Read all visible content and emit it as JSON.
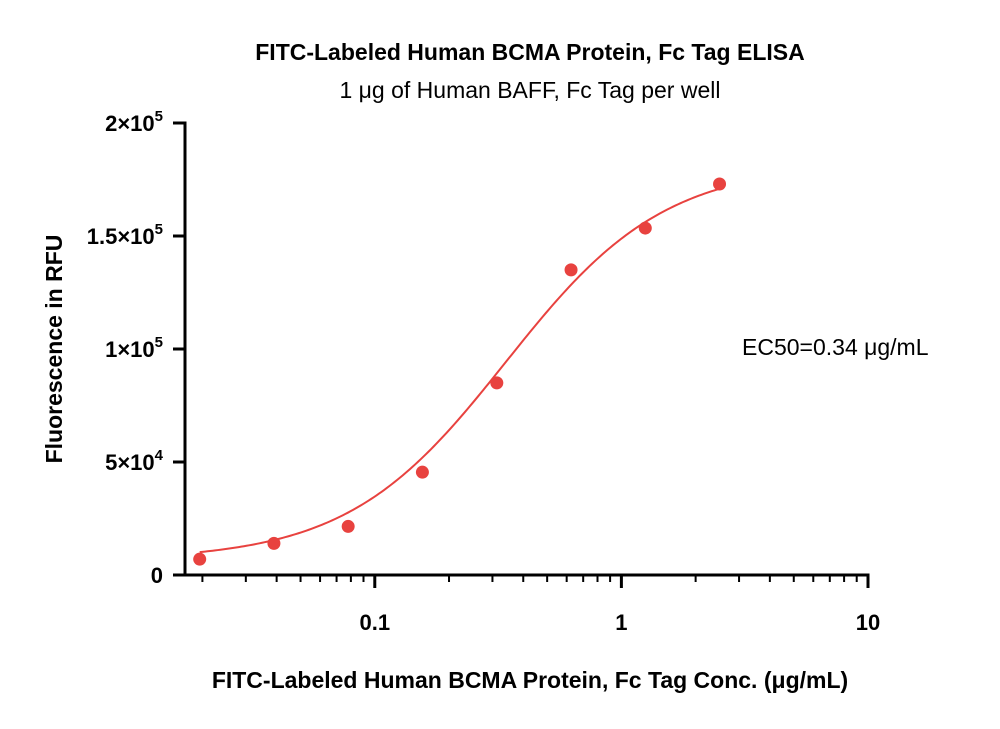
{
  "chart_data": {
    "type": "scatter",
    "title": "FITC-Labeled Human BCMA Protein, Fc Tag ELISA",
    "subtitle": "1 μg of Human BAFF, Fc Tag per well",
    "xlabel": "FITC-Labeled Human BCMA Protein, Fc Tag Conc. (μg/mL)",
    "ylabel": "Fluorescence in RFU",
    "x_scale": "log",
    "xlim": [
      0.017,
      10
    ],
    "ylim": [
      0,
      200000
    ],
    "x_ticks": [
      {
        "value": 0.1,
        "label": "0.1"
      },
      {
        "value": 1,
        "label": "1"
      },
      {
        "value": 10,
        "label": "10"
      }
    ],
    "y_ticks": [
      {
        "value": 0,
        "base": "0",
        "exp": ""
      },
      {
        "value": 50000,
        "base": "5×10",
        "exp": "4"
      },
      {
        "value": 100000,
        "base": "1×10",
        "exp": "5"
      },
      {
        "value": 150000,
        "base": "1.5×10",
        "exp": "5"
      },
      {
        "value": 200000,
        "base": "2×10",
        "exp": "5"
      }
    ],
    "grid": false,
    "color": "#e8423f",
    "points": [
      {
        "x": 0.0195,
        "y": 7000
      },
      {
        "x": 0.039,
        "y": 14000
      },
      {
        "x": 0.078,
        "y": 21500
      },
      {
        "x": 0.156,
        "y": 45500
      },
      {
        "x": 0.3125,
        "y": 85000
      },
      {
        "x": 0.625,
        "y": 135000
      },
      {
        "x": 1.25,
        "y": 153500
      },
      {
        "x": 2.5,
        "y": 173000
      }
    ],
    "fit": {
      "model": "4PL",
      "bottom": 6500,
      "top": 182000,
      "ec50": 0.34,
      "hill": 1.35,
      "x_range": [
        0.0195,
        2.5
      ]
    },
    "annotation": "EC50=0.34 μg/mL"
  }
}
